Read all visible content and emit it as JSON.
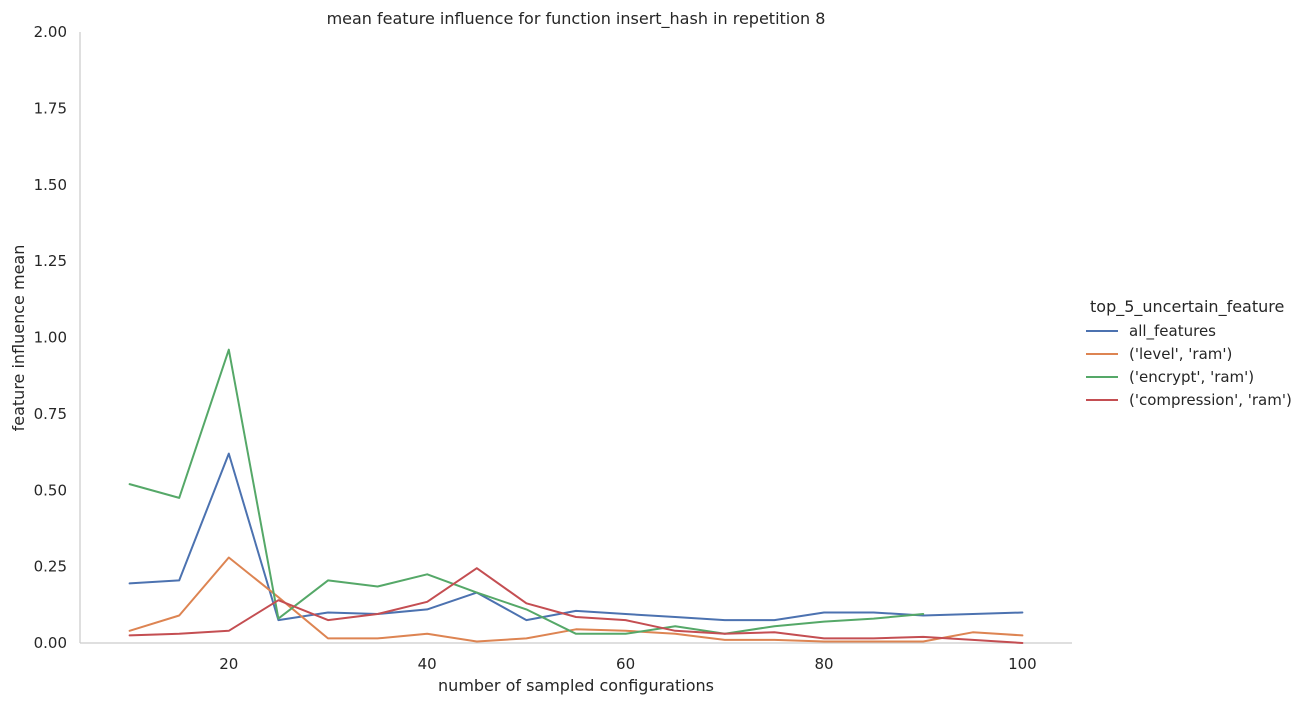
{
  "chart_data": {
    "type": "line",
    "title": "mean feature influence for function insert_hash in repetition 8",
    "xlabel": "number of sampled configurations",
    "ylabel": "feature influence mean",
    "xlim": [
      5,
      105
    ],
    "ylim": [
      0,
      2.0
    ],
    "xticks": [
      20,
      40,
      60,
      80,
      100
    ],
    "yticks": [
      0.0,
      0.25,
      0.5,
      0.75,
      1.0,
      1.25,
      1.5,
      1.75,
      2.0
    ],
    "ytick_labels": [
      "0.00",
      "0.25",
      "0.50",
      "0.75",
      "1.00",
      "1.25",
      "1.50",
      "1.75",
      "2.00"
    ],
    "grid": false,
    "legend_title": "top_5_uncertain_feature",
    "legend_position": "right",
    "series": [
      {
        "name": "all_features",
        "color": "#4c72b0",
        "x": [
          10,
          15,
          20,
          25,
          30,
          35,
          40,
          45,
          50,
          55,
          60,
          65,
          70,
          75,
          80,
          85,
          90,
          95,
          100
        ],
        "values": [
          0.195,
          0.205,
          0.62,
          0.075,
          0.1,
          0.095,
          0.11,
          0.165,
          0.075,
          0.105,
          0.095,
          0.085,
          0.075,
          0.075,
          0.1,
          0.1,
          0.09,
          0.095,
          0.1
        ]
      },
      {
        "name": "('level', 'ram')",
        "color": "#dd8452",
        "x": [
          10,
          15,
          20,
          25,
          30,
          35,
          40,
          45,
          50,
          55,
          60,
          65,
          70,
          75,
          80,
          85,
          90,
          95,
          100
        ],
        "values": [
          0.04,
          0.09,
          0.28,
          0.15,
          0.015,
          0.015,
          0.03,
          0.005,
          0.015,
          0.045,
          0.04,
          0.03,
          0.01,
          0.01,
          0.005,
          0.005,
          0.005,
          0.035,
          0.025
        ]
      },
      {
        "name": "('encrypt', 'ram')",
        "color": "#55a868",
        "x": [
          10,
          15,
          20,
          25,
          30,
          35,
          40,
          45,
          50,
          55,
          60,
          65,
          70,
          75,
          80,
          85,
          90
        ],
        "values": [
          0.52,
          0.475,
          0.96,
          0.08,
          0.205,
          0.185,
          0.225,
          0.165,
          0.11,
          0.03,
          0.03,
          0.055,
          0.03,
          0.055,
          0.07,
          0.08,
          0.095
        ]
      },
      {
        "name": "('compression', 'ram')",
        "color": "#c44e52",
        "x": [
          10,
          15,
          20,
          25,
          30,
          35,
          40,
          45,
          50,
          55,
          60,
          65,
          70,
          75,
          80,
          85,
          90,
          95,
          100
        ],
        "values": [
          0.025,
          0.03,
          0.04,
          0.14,
          0.075,
          0.095,
          0.135,
          0.245,
          0.13,
          0.085,
          0.075,
          0.04,
          0.03,
          0.035,
          0.015,
          0.015,
          0.02,
          0.01,
          0.0
        ]
      }
    ]
  }
}
